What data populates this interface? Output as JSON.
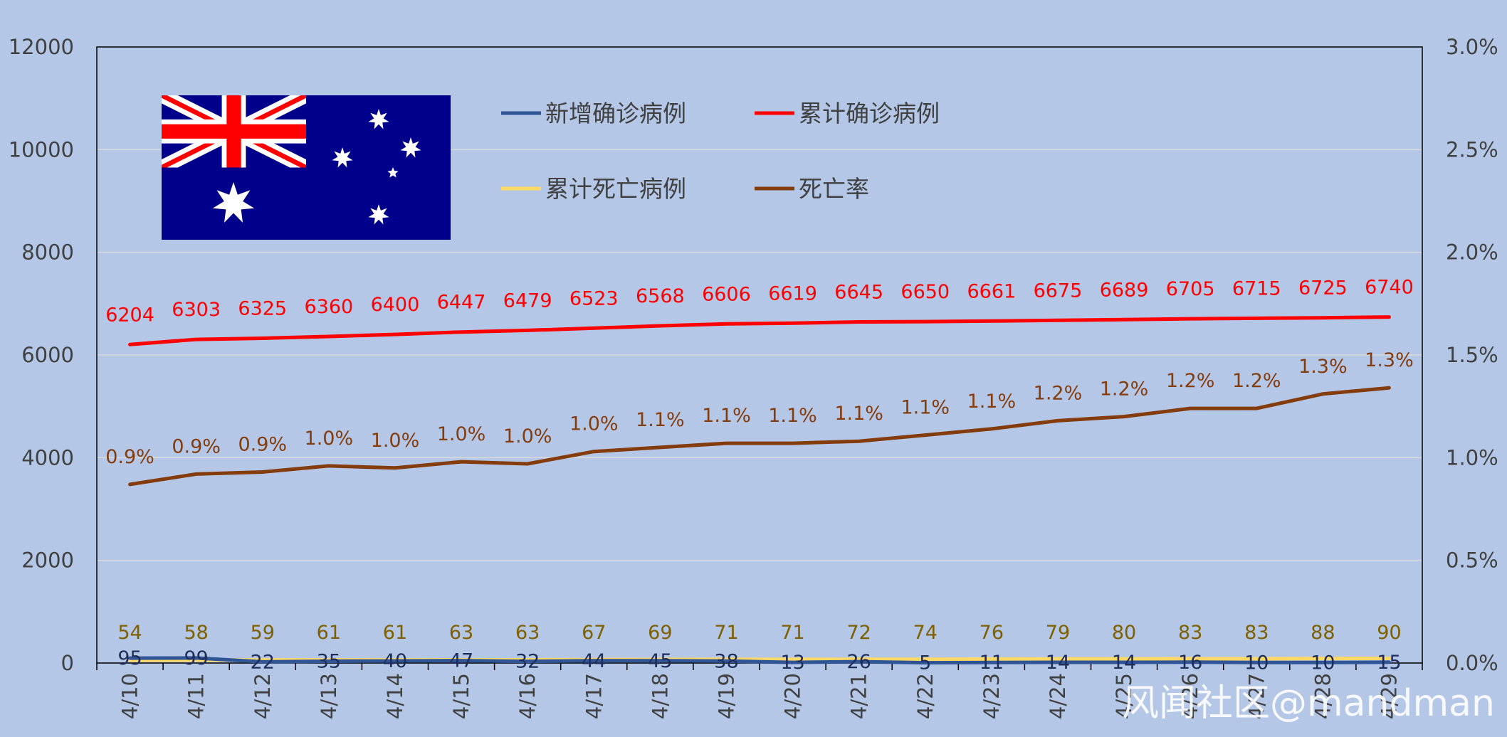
{
  "chart_data": {
    "type": "line",
    "categories": [
      "4/10",
      "4/11",
      "4/12",
      "4/13",
      "4/14",
      "4/15",
      "4/16",
      "4/17",
      "4/18",
      "4/19",
      "4/20",
      "4/21",
      "4/22",
      "4/23",
      "4/24",
      "4/25",
      "4/26",
      "4/27",
      "4/28",
      "4/29"
    ],
    "y_left": {
      "min": 0,
      "max": 12000,
      "ticks": [
        "0",
        "2000",
        "4000",
        "6000",
        "8000",
        "10000",
        "12000"
      ]
    },
    "y_right": {
      "min": 0,
      "max": 3.0,
      "ticks": [
        "0.0%",
        "0.5%",
        "1.0%",
        "1.5%",
        "2.0%",
        "2.5%",
        "3.0%"
      ]
    },
    "grid": true,
    "series": [
      {
        "name": "新增确诊病例",
        "axis": "left",
        "color": "#2f5597",
        "values": [
          95,
          99,
          22,
          35,
          40,
          47,
          32,
          44,
          45,
          38,
          13,
          26,
          5,
          11,
          14,
          14,
          16,
          10,
          10,
          15
        ],
        "labels": [
          "95",
          "99",
          "22",
          "35",
          "40",
          "47",
          "32",
          "44",
          "45",
          "38",
          "13",
          "26",
          "5",
          "11",
          "14",
          "14",
          "16",
          "10",
          "10",
          "15"
        ],
        "label_color": "#1f2d5a"
      },
      {
        "name": "累计确诊病例",
        "axis": "left",
        "color": "#ff0000",
        "values": [
          6204,
          6303,
          6325,
          6360,
          6400,
          6447,
          6479,
          6523,
          6568,
          6606,
          6619,
          6645,
          6650,
          6661,
          6675,
          6689,
          6705,
          6715,
          6725,
          6740
        ],
        "labels": [
          "6204",
          "6303",
          "6325",
          "6360",
          "6400",
          "6447",
          "6479",
          "6523",
          "6568",
          "6606",
          "6619",
          "6645",
          "6650",
          "6661",
          "6675",
          "6689",
          "6705",
          "6715",
          "6725",
          "6740"
        ],
        "label_color": "#ff0000"
      },
      {
        "name": "累计死亡病例",
        "axis": "left",
        "color": "#ffd966",
        "values": [
          54,
          58,
          59,
          61,
          61,
          63,
          63,
          67,
          69,
          71,
          71,
          72,
          74,
          76,
          79,
          80,
          83,
          83,
          88,
          90
        ],
        "labels": [
          "54",
          "58",
          "59",
          "61",
          "61",
          "63",
          "63",
          "67",
          "69",
          "71",
          "71",
          "72",
          "74",
          "76",
          "79",
          "80",
          "83",
          "83",
          "88",
          "90"
        ],
        "label_color": "#7f6000"
      },
      {
        "name": "死亡率",
        "axis": "right",
        "color": "#843c0c",
        "values": [
          0.87,
          0.92,
          0.93,
          0.96,
          0.95,
          0.98,
          0.97,
          1.03,
          1.05,
          1.07,
          1.07,
          1.08,
          1.11,
          1.14,
          1.18,
          1.2,
          1.24,
          1.24,
          1.31,
          1.34
        ],
        "labels": [
          "0.9%",
          "0.9%",
          "0.9%",
          "1.0%",
          "1.0%",
          "1.0%",
          "1.0%",
          "1.0%",
          "1.1%",
          "1.1%",
          "1.1%",
          "1.1%",
          "1.1%",
          "1.1%",
          "1.2%",
          "1.2%",
          "1.2%",
          "1.2%",
          "1.3%",
          "1.3%"
        ],
        "label_color": "#843c0c"
      }
    ],
    "legend": {
      "placement": "top",
      "columns": 2
    }
  },
  "flag": {
    "name": "australia-flag",
    "blue": "#00008b",
    "red": "#ff0000",
    "white": "#ffffff"
  },
  "watermark": "风闻社区@mandman"
}
